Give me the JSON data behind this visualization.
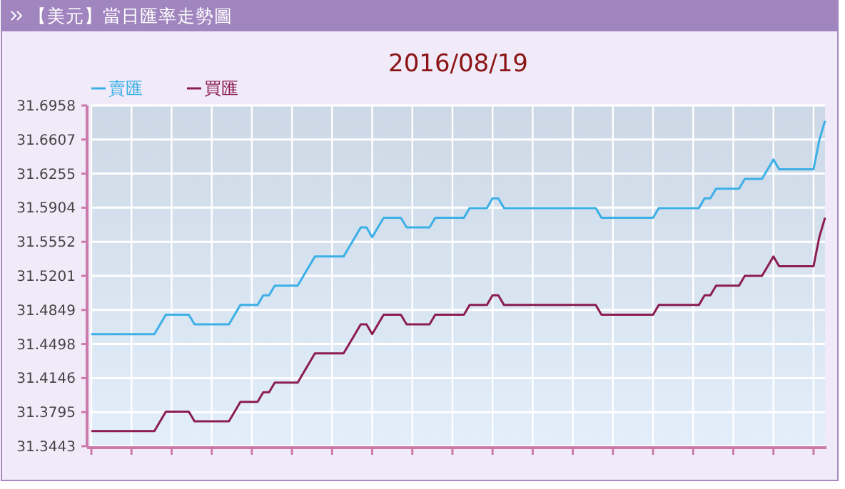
{
  "chart_data": {
    "type": "line",
    "title": "【美元】當日匯率走勢圖",
    "subtitle": "2016/08/19",
    "categories": [
      null,
      null,
      null,
      null,
      null,
      null,
      null,
      null,
      null,
      null,
      null,
      null,
      null,
      null,
      null,
      null,
      null,
      null,
      null,
      null,
      null,
      null,
      null,
      null,
      null,
      null,
      null,
      null,
      null,
      null,
      null,
      null,
      null,
      null,
      null,
      null,
      null,
      null,
      null,
      null,
      null,
      null,
      null,
      null,
      null,
      null,
      null,
      null,
      null,
      null,
      null,
      null,
      null,
      null,
      null,
      null,
      null,
      null,
      null,
      null,
      null,
      null,
      null,
      null,
      null,
      null,
      null,
      null,
      null,
      null,
      null,
      null,
      null,
      null,
      null,
      null,
      null,
      null,
      null,
      null,
      null,
      null,
      null,
      null,
      null,
      null,
      null,
      null,
      null,
      null,
      null,
      null,
      null,
      null,
      null,
      null,
      null,
      null,
      null,
      null,
      null,
      null,
      null,
      null,
      null,
      null,
      null,
      null,
      null,
      null,
      null,
      null,
      null,
      null,
      null,
      null,
      null,
      null,
      null,
      null,
      null,
      null,
      null,
      null,
      null,
      null,
      null,
      null,
      null
    ],
    "series": [
      {
        "name": "賣匯",
        "color": "#3cb0e6",
        "values": [
          31.46,
          31.46,
          31.46,
          31.46,
          31.46,
          31.46,
          31.46,
          31.46,
          31.46,
          31.46,
          31.46,
          31.46,
          31.47,
          31.48,
          31.48,
          31.48,
          31.48,
          31.48,
          31.47,
          31.47,
          31.47,
          31.47,
          31.47,
          31.47,
          31.47,
          31.48,
          31.49,
          31.49,
          31.49,
          31.49,
          31.5,
          31.5,
          31.51,
          31.51,
          31.51,
          31.51,
          31.51,
          31.52,
          31.53,
          31.54,
          31.54,
          31.54,
          31.54,
          31.54,
          31.54,
          31.55,
          31.56,
          31.57,
          31.57,
          31.56,
          31.57,
          31.58,
          31.58,
          31.58,
          31.58,
          31.57,
          31.57,
          31.57,
          31.57,
          31.57,
          31.58,
          31.58,
          31.58,
          31.58,
          31.58,
          31.58,
          31.59,
          31.59,
          31.59,
          31.59,
          31.6,
          31.6,
          31.59,
          31.59,
          31.59,
          31.59,
          31.59,
          31.59,
          31.59,
          31.59,
          31.59,
          31.59,
          31.59,
          31.59,
          31.59,
          31.59,
          31.59,
          31.59,
          31.59,
          31.58,
          31.58,
          31.58,
          31.58,
          31.58,
          31.58,
          31.58,
          31.58,
          31.58,
          31.58,
          31.59,
          31.59,
          31.59,
          31.59,
          31.59,
          31.59,
          31.59,
          31.59,
          31.6,
          31.6,
          31.61,
          31.61,
          31.61,
          31.61,
          31.61,
          31.62,
          31.62,
          31.62,
          31.62,
          31.63,
          31.64,
          31.63,
          31.63,
          31.63,
          31.63,
          31.63,
          31.63,
          31.63,
          31.66,
          31.68
        ]
      },
      {
        "name": "買匯",
        "color": "#8c1c52",
        "values": [
          31.36,
          31.36,
          31.36,
          31.36,
          31.36,
          31.36,
          31.36,
          31.36,
          31.36,
          31.36,
          31.36,
          31.36,
          31.37,
          31.38,
          31.38,
          31.38,
          31.38,
          31.38,
          31.37,
          31.37,
          31.37,
          31.37,
          31.37,
          31.37,
          31.37,
          31.38,
          31.39,
          31.39,
          31.39,
          31.39,
          31.4,
          31.4,
          31.41,
          31.41,
          31.41,
          31.41,
          31.41,
          31.42,
          31.43,
          31.44,
          31.44,
          31.44,
          31.44,
          31.44,
          31.44,
          31.45,
          31.46,
          31.47,
          31.47,
          31.46,
          31.47,
          31.48,
          31.48,
          31.48,
          31.48,
          31.47,
          31.47,
          31.47,
          31.47,
          31.47,
          31.48,
          31.48,
          31.48,
          31.48,
          31.48,
          31.48,
          31.49,
          31.49,
          31.49,
          31.49,
          31.5,
          31.5,
          31.49,
          31.49,
          31.49,
          31.49,
          31.49,
          31.49,
          31.49,
          31.49,
          31.49,
          31.49,
          31.49,
          31.49,
          31.49,
          31.49,
          31.49,
          31.49,
          31.49,
          31.48,
          31.48,
          31.48,
          31.48,
          31.48,
          31.48,
          31.48,
          31.48,
          31.48,
          31.48,
          31.49,
          31.49,
          31.49,
          31.49,
          31.49,
          31.49,
          31.49,
          31.49,
          31.5,
          31.5,
          31.51,
          31.51,
          31.51,
          31.51,
          31.51,
          31.52,
          31.52,
          31.52,
          31.52,
          31.53,
          31.54,
          31.53,
          31.53,
          31.53,
          31.53,
          31.53,
          31.53,
          31.53,
          31.56,
          31.58
        ]
      }
    ],
    "ylim": [
      31.3443,
      31.6958
    ],
    "yticks": [
      31.3443,
      31.3795,
      31.4146,
      31.4498,
      31.4849,
      31.5201,
      31.5552,
      31.5904,
      31.6255,
      31.6607,
      31.6958
    ],
    "grid": true,
    "legend": "top left",
    "tick_labels": "y",
    "marker": "none",
    "line_style": "solid"
  }
}
